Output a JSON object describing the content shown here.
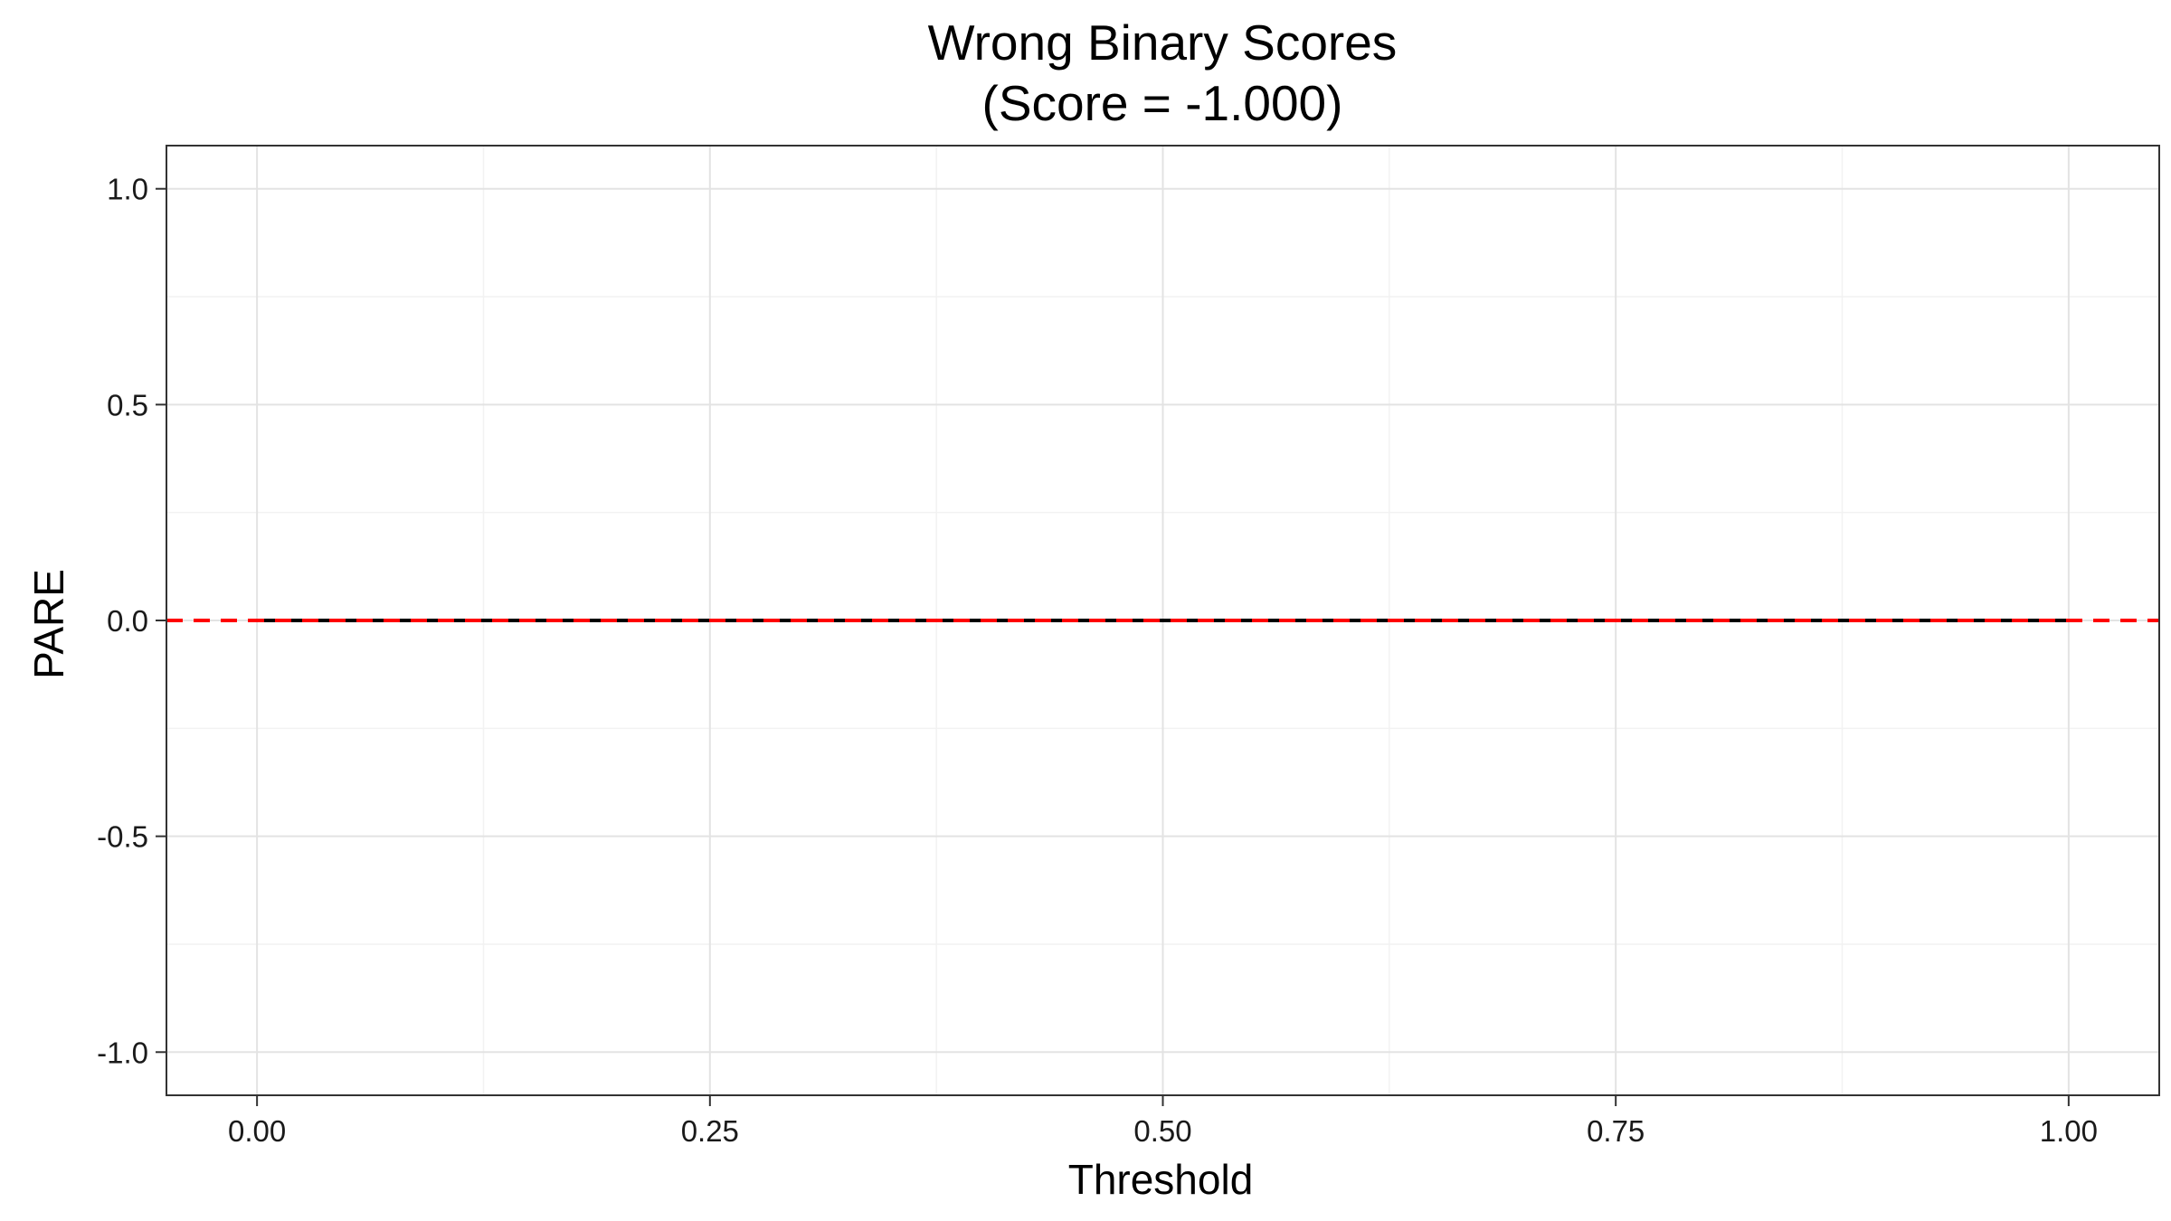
{
  "chart_data": {
    "type": "line",
    "title": "Wrong Binary Scores",
    "subtitle": "(Score = -1.000)",
    "xlabel": "Threshold",
    "ylabel": "PARE",
    "xlim": [
      -0.05,
      1.05
    ],
    "ylim": [
      -1.1,
      1.1
    ],
    "x_ticks": [
      0.0,
      0.25,
      0.5,
      0.75,
      1.0
    ],
    "x_tick_labels": [
      "0.00",
      "0.25",
      "0.50",
      "0.75",
      "1.00"
    ],
    "y_ticks": [
      1.0,
      0.5,
      0.0,
      -0.5,
      -1.0
    ],
    "y_tick_labels": [
      "1.0",
      "0.5",
      "0.0",
      "-0.5",
      "-1.0"
    ],
    "grid": true,
    "series": [
      {
        "x": [
          0.0,
          0.25,
          0.5,
          0.75,
          1.0
        ],
        "y": [
          0,
          0,
          0,
          0,
          0
        ],
        "color": "#000000",
        "style": "solid"
      }
    ],
    "reference_lines": [
      {
        "orientation": "horizontal",
        "y": 0,
        "color": "#ff0000",
        "style": "dashed"
      }
    ]
  }
}
